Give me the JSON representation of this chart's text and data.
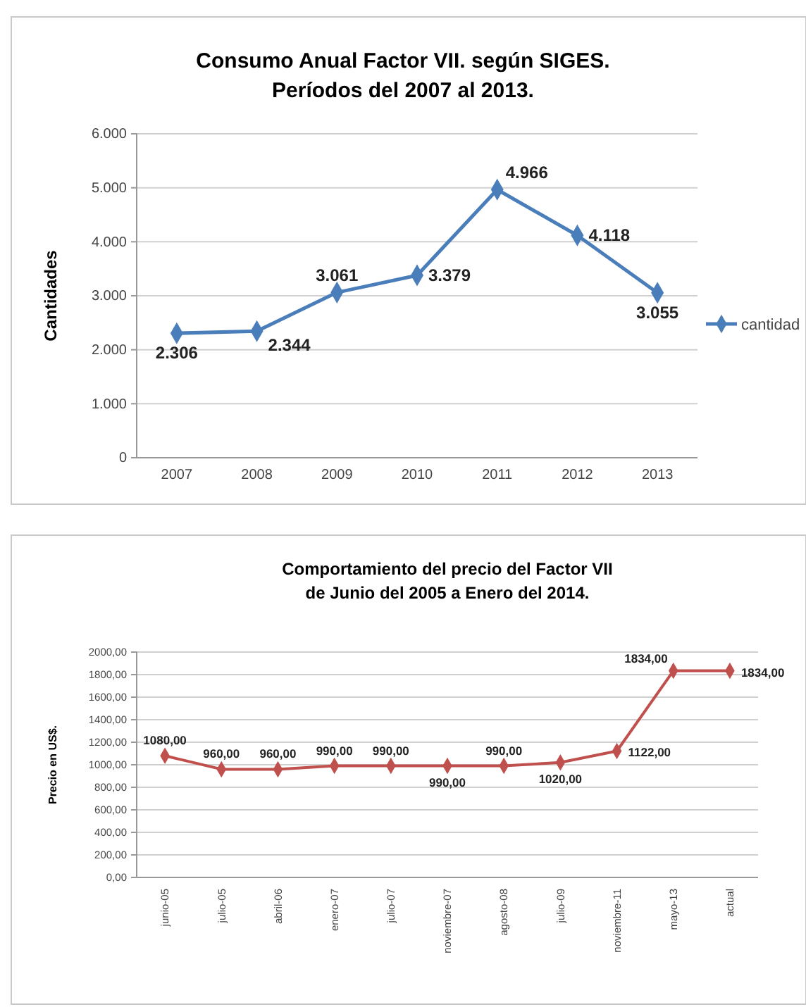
{
  "chart_data": [
    {
      "type": "line",
      "title": "Consumo Anual Factor VII. según SIGES.\nPeríodos del 2007 al 2013.",
      "ylabel": "Cantidades",
      "categories": [
        "2007",
        "2008",
        "2009",
        "2010",
        "2011",
        "2012",
        "2013"
      ],
      "series": [
        {
          "name": "cantidad",
          "color": "#4a7ebb",
          "values": [
            2306,
            2344,
            3061,
            3379,
            4966,
            4118,
            3055
          ],
          "value_labels": [
            "2.306",
            "2.344",
            "3.061",
            "3.379",
            "4.966",
            "4.118",
            "3.055"
          ]
        }
      ],
      "ylim": [
        0,
        6000
      ],
      "yticks": [
        0,
        {
          "value": 1000,
          "label": "1.000"
        },
        {
          "value": 2000,
          "label": "2.000"
        },
        {
          "value": 3000,
          "label": "3.000"
        },
        {
          "value": 4000,
          "label": "4.000"
        },
        {
          "value": 5000,
          "label": "5.000"
        },
        {
          "value": 6000,
          "label": "6.000"
        }
      ],
      "grid": "y",
      "legend": "right",
      "marker": "diamond",
      "line_style": "solid"
    },
    {
      "type": "line",
      "title": "Comportamiento del precio del Factor VII\nde Junio del 2005 a Enero del 2014.",
      "ylabel": "Precio en US$.",
      "categories": [
        "junio-05",
        "julio-05",
        "abril-06",
        "enero-07",
        "julio-07",
        "noviembre-07",
        "agosto-08",
        "julio-09",
        "noviembre-11",
        "mayo-13",
        "actual"
      ],
      "series": [
        {
          "color": "#c0504d",
          "values": [
            1080,
            960,
            960,
            990,
            990,
            990,
            990,
            1020,
            1122,
            1834,
            1834
          ],
          "value_labels": [
            "1080,00",
            "960,00",
            "960,00",
            "990,00",
            "990,00",
            "990,00",
            "990,00",
            "1020,00",
            "1122,00",
            "1834,00",
            "1834,00"
          ]
        }
      ],
      "ylim": [
        0,
        2000
      ],
      "yticks": [
        {
          "value": 0,
          "label": "0,00"
        },
        {
          "value": 200,
          "label": "200,00"
        },
        {
          "value": 400,
          "label": "400,00"
        },
        {
          "value": 600,
          "label": "600,00"
        },
        {
          "value": 800,
          "label": "800,00"
        },
        {
          "value": 1000,
          "label": "1000,00"
        },
        {
          "value": 1200,
          "label": "1200,00"
        },
        {
          "value": 1400,
          "label": "1400,00"
        },
        {
          "value": 1600,
          "label": "1600,00"
        },
        {
          "value": 1800,
          "label": "1800,00"
        },
        {
          "value": 2000,
          "label": "2000,00"
        }
      ],
      "grid": "y",
      "legend": false,
      "marker": "diamond",
      "line_style": "solid"
    }
  ]
}
